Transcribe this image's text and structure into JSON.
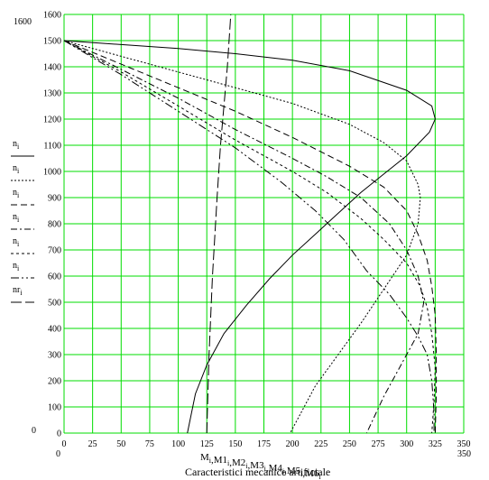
{
  "chart_data": {
    "type": "line",
    "title": "Caracteristici mecanice artificiale",
    "xlabel": "M_i, M1_i, M2_i, M3_i, M4_i, M5_i, M6_i",
    "xlabel_parts": [
      "M",
      ",M1",
      ",M2",
      ",M3",
      ",M4",
      ",M5",
      ",M6"
    ],
    "subscript": "i",
    "xlim": [
      0,
      350
    ],
    "ylim": [
      0,
      1600
    ],
    "x_ticks": [
      0,
      25,
      50,
      75,
      100,
      125,
      150,
      175,
      200,
      225,
      250,
      275,
      300,
      325,
      350
    ],
    "y_ticks": [
      0,
      100,
      200,
      300,
      400,
      500,
      600,
      700,
      800,
      900,
      1000,
      1100,
      1200,
      1300,
      1400,
      1500,
      1600
    ],
    "corner_labels": {
      "ymax": "1600",
      "ymin": "0",
      "xmin": "0",
      "xmax": "350"
    },
    "grid": true,
    "grid_color": "#00dd00",
    "legend_labels": [
      "n",
      "n",
      "n",
      "n",
      "n",
      "n",
      "nr"
    ],
    "legend_subscript": "i",
    "series": [
      {
        "legend": "n",
        "style": "solid",
        "points": [
          [
            0,
            1500
          ],
          [
            50,
            1485
          ],
          [
            100,
            1470
          ],
          [
            150,
            1450
          ],
          [
            200,
            1425
          ],
          [
            250,
            1385
          ],
          [
            300,
            1310
          ],
          [
            322,
            1250
          ],
          [
            325,
            1200
          ],
          [
            320,
            1150
          ],
          [
            300,
            1060
          ],
          [
            280,
            990
          ],
          [
            260,
            920
          ],
          [
            240,
            840
          ],
          [
            220,
            760
          ],
          [
            200,
            680
          ],
          [
            180,
            590
          ],
          [
            160,
            490
          ],
          [
            140,
            380
          ],
          [
            125,
            260
          ],
          [
            115,
            150
          ],
          [
            108,
            0
          ]
        ]
      },
      {
        "legend": "n",
        "style": "dotted",
        "points": [
          [
            0,
            1500
          ],
          [
            50,
            1440
          ],
          [
            100,
            1380
          ],
          [
            150,
            1320
          ],
          [
            200,
            1260
          ],
          [
            250,
            1180
          ],
          [
            280,
            1110
          ],
          [
            300,
            1040
          ],
          [
            310,
            950
          ],
          [
            312,
            900
          ],
          [
            310,
            800
          ],
          [
            300,
            680
          ],
          [
            280,
            550
          ],
          [
            260,
            420
          ],
          [
            240,
            300
          ],
          [
            220,
            180
          ],
          [
            198,
            0
          ]
        ]
      },
      {
        "legend": "n",
        "style": "dashed",
        "points": [
          [
            0,
            1500
          ],
          [
            50,
            1410
          ],
          [
            100,
            1320
          ],
          [
            150,
            1230
          ],
          [
            200,
            1130
          ],
          [
            250,
            1020
          ],
          [
            280,
            940
          ],
          [
            300,
            850
          ],
          [
            310,
            760
          ],
          [
            318,
            660
          ],
          [
            322,
            560
          ],
          [
            325,
            450
          ],
          [
            326,
            300
          ],
          [
            326,
            150
          ],
          [
            325,
            0
          ]
        ]
      },
      {
        "legend": "n",
        "style": "dashdot",
        "points": [
          [
            0,
            1500
          ],
          [
            50,
            1390
          ],
          [
            100,
            1280
          ],
          [
            150,
            1160
          ],
          [
            200,
            1050
          ],
          [
            230,
            980
          ],
          [
            260,
            900
          ],
          [
            285,
            800
          ],
          [
            300,
            700
          ],
          [
            310,
            600
          ],
          [
            315,
            500
          ],
          [
            310,
            380
          ],
          [
            295,
            260
          ],
          [
            280,
            140
          ],
          [
            265,
            0
          ]
        ]
      },
      {
        "legend": "n",
        "style": "dotted2",
        "points": [
          [
            0,
            1500
          ],
          [
            50,
            1380
          ],
          [
            100,
            1250
          ],
          [
            150,
            1120
          ],
          [
            200,
            1000
          ],
          [
            230,
            920
          ],
          [
            260,
            820
          ],
          [
            280,
            740
          ],
          [
            300,
            650
          ],
          [
            312,
            560
          ],
          [
            318,
            480
          ],
          [
            322,
            380
          ],
          [
            325,
            250
          ],
          [
            324,
            120
          ],
          [
            322,
            0
          ]
        ]
      },
      {
        "legend": "n",
        "style": "dashdot2",
        "points": [
          [
            0,
            1500
          ],
          [
            50,
            1370
          ],
          [
            100,
            1230
          ],
          [
            150,
            1090
          ],
          [
            190,
            960
          ],
          [
            220,
            850
          ],
          [
            245,
            740
          ],
          [
            265,
            620
          ],
          [
            285,
            530
          ],
          [
            300,
            440
          ],
          [
            310,
            370
          ],
          [
            318,
            300
          ],
          [
            322,
            200
          ],
          [
            324,
            80
          ],
          [
            324,
            0
          ]
        ]
      },
      {
        "legend": "nr",
        "style": "longdash",
        "points": [
          [
            125,
            0
          ],
          [
            127,
            300
          ],
          [
            130,
            600
          ],
          [
            134,
            900
          ],
          [
            137,
            1100
          ],
          [
            140,
            1250
          ],
          [
            143,
            1400
          ],
          [
            146,
            1600
          ]
        ]
      }
    ]
  }
}
